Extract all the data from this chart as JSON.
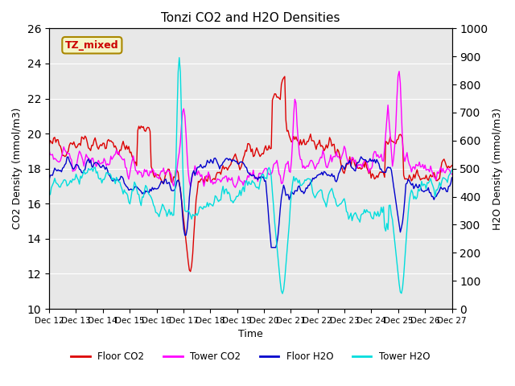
{
  "title": "Tonzi CO2 and H2O Densities",
  "xlabel": "Time",
  "ylabel_left": "CO2 Density (mmol/m3)",
  "ylabel_right": "H2O Density (mmol/m3)",
  "ylim_left": [
    10,
    26
  ],
  "ylim_right": [
    0,
    1000
  ],
  "yticks_left": [
    10,
    12,
    14,
    16,
    18,
    20,
    22,
    24,
    26
  ],
  "yticks_right": [
    0,
    100,
    200,
    300,
    400,
    500,
    600,
    700,
    800,
    900,
    1000
  ],
  "background_color": "#e8e8e8",
  "annotation_text": "TZ_mixed",
  "annotation_color": "#cc0000",
  "annotation_bg": "#f5f5c8",
  "colors": {
    "floor_co2": "#dd0000",
    "tower_co2": "#ff00ff",
    "floor_h2o": "#0000cc",
    "tower_h2o": "#00dddd"
  },
  "legend_labels": [
    "Floor CO2",
    "Tower CO2",
    "Floor H2O",
    "Tower H2O"
  ]
}
